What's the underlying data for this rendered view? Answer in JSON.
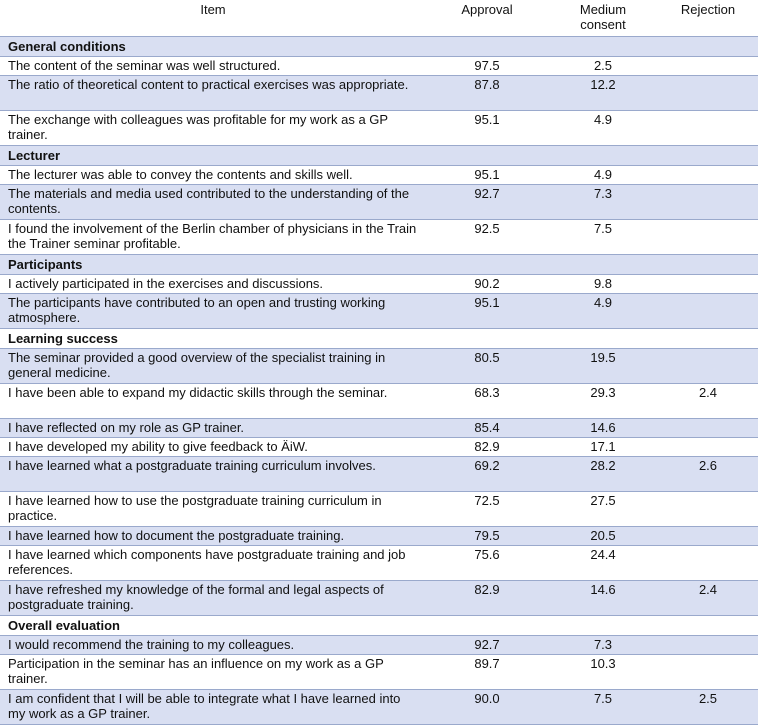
{
  "headers": {
    "item": "Item",
    "approval": "Approval",
    "medium_line1": "Medium",
    "medium_line2": "consent",
    "rejection": "Rejection"
  },
  "sections": [
    {
      "title": "General conditions",
      "rows": [
        {
          "item": "The content of the seminar was well structured.",
          "approval": "97.5",
          "medium": "2.5",
          "rejection": ""
        },
        {
          "item": "The ratio of theoretical content to practical exercises was appropriate.",
          "approval": "87.8",
          "medium": "12.2",
          "rejection": ""
        },
        {
          "item": "The exchange with colleagues was profitable for my work as a GP trainer.",
          "approval": "95.1",
          "medium": "4.9",
          "rejection": ""
        }
      ]
    },
    {
      "title": "Lecturer",
      "rows": [
        {
          "item": "The lecturer was able to convey the contents and skills well.",
          "approval": "95.1",
          "medium": "4.9",
          "rejection": ""
        },
        {
          "item": "The materials and media used contributed to the understanding of the contents.",
          "approval": "92.7",
          "medium": "7.3",
          "rejection": ""
        },
        {
          "item": "I found the involvement of the Berlin chamber of physicians in the Train the Trainer seminar profitable.",
          "approval": "92.5",
          "medium": "7.5",
          "rejection": ""
        }
      ]
    },
    {
      "title": "Participants",
      "rows": [
        {
          "item": "I actively participated in the exercises and discussions.",
          "approval": "90.2",
          "medium": "9.8",
          "rejection": ""
        },
        {
          "item": "The participants have contributed to an open and trusting working atmosphere.",
          "approval": "95.1",
          "medium": "4.9",
          "rejection": ""
        }
      ]
    },
    {
      "title": "Learning success",
      "rows": [
        {
          "item": "The seminar provided a good overview of the specialist training in general medicine.",
          "approval": "80.5",
          "medium": "19.5",
          "rejection": ""
        },
        {
          "item": "I have been able to expand my didactic skills through the seminar.",
          "approval": "68.3",
          "medium": "29.3",
          "rejection": "2.4"
        },
        {
          "item": "I have reflected on my role as GP trainer.",
          "approval": "85.4",
          "medium": "14.6",
          "rejection": ""
        },
        {
          "item": "I have developed my ability to give feedback to ÄiW.",
          "approval": "82.9",
          "medium": "17.1",
          "rejection": ""
        },
        {
          "item": "I have learned what a postgraduate training curriculum involves.",
          "approval": "69.2",
          "medium": "28.2",
          "rejection": "2.6"
        },
        {
          "item": "I have learned how to use the postgraduate training curriculum in practice.",
          "approval": "72.5",
          "medium": "27.5",
          "rejection": ""
        },
        {
          "item": "I have learned how to document the postgraduate training.",
          "approval": "79.5",
          "medium": "20.5",
          "rejection": ""
        },
        {
          "item": "I have learned which components have postgraduate training and job references.",
          "approval": "75.6",
          "medium": "24.4",
          "rejection": ""
        },
        {
          "item": "I have refreshed my knowledge of the formal and legal aspects of postgraduate training.",
          "approval": "82.9",
          "medium": "14.6",
          "rejection": "2.4"
        }
      ]
    },
    {
      "title": "Overall evaluation",
      "rows": [
        {
          "item": "I would recommend the training to my colleagues.",
          "approval": "92.7",
          "medium": "7.3",
          "rejection": ""
        },
        {
          "item": "Participation in the seminar has an influence on my work as a GP trainer.",
          "approval": "89.7",
          "medium": "10.3",
          "rejection": ""
        },
        {
          "item": "I am confident that I will be able to integrate what I have learned into my work as a GP trainer.",
          "approval": "90.0",
          "medium": "7.5",
          "rejection": "2.5"
        }
      ]
    }
  ]
}
